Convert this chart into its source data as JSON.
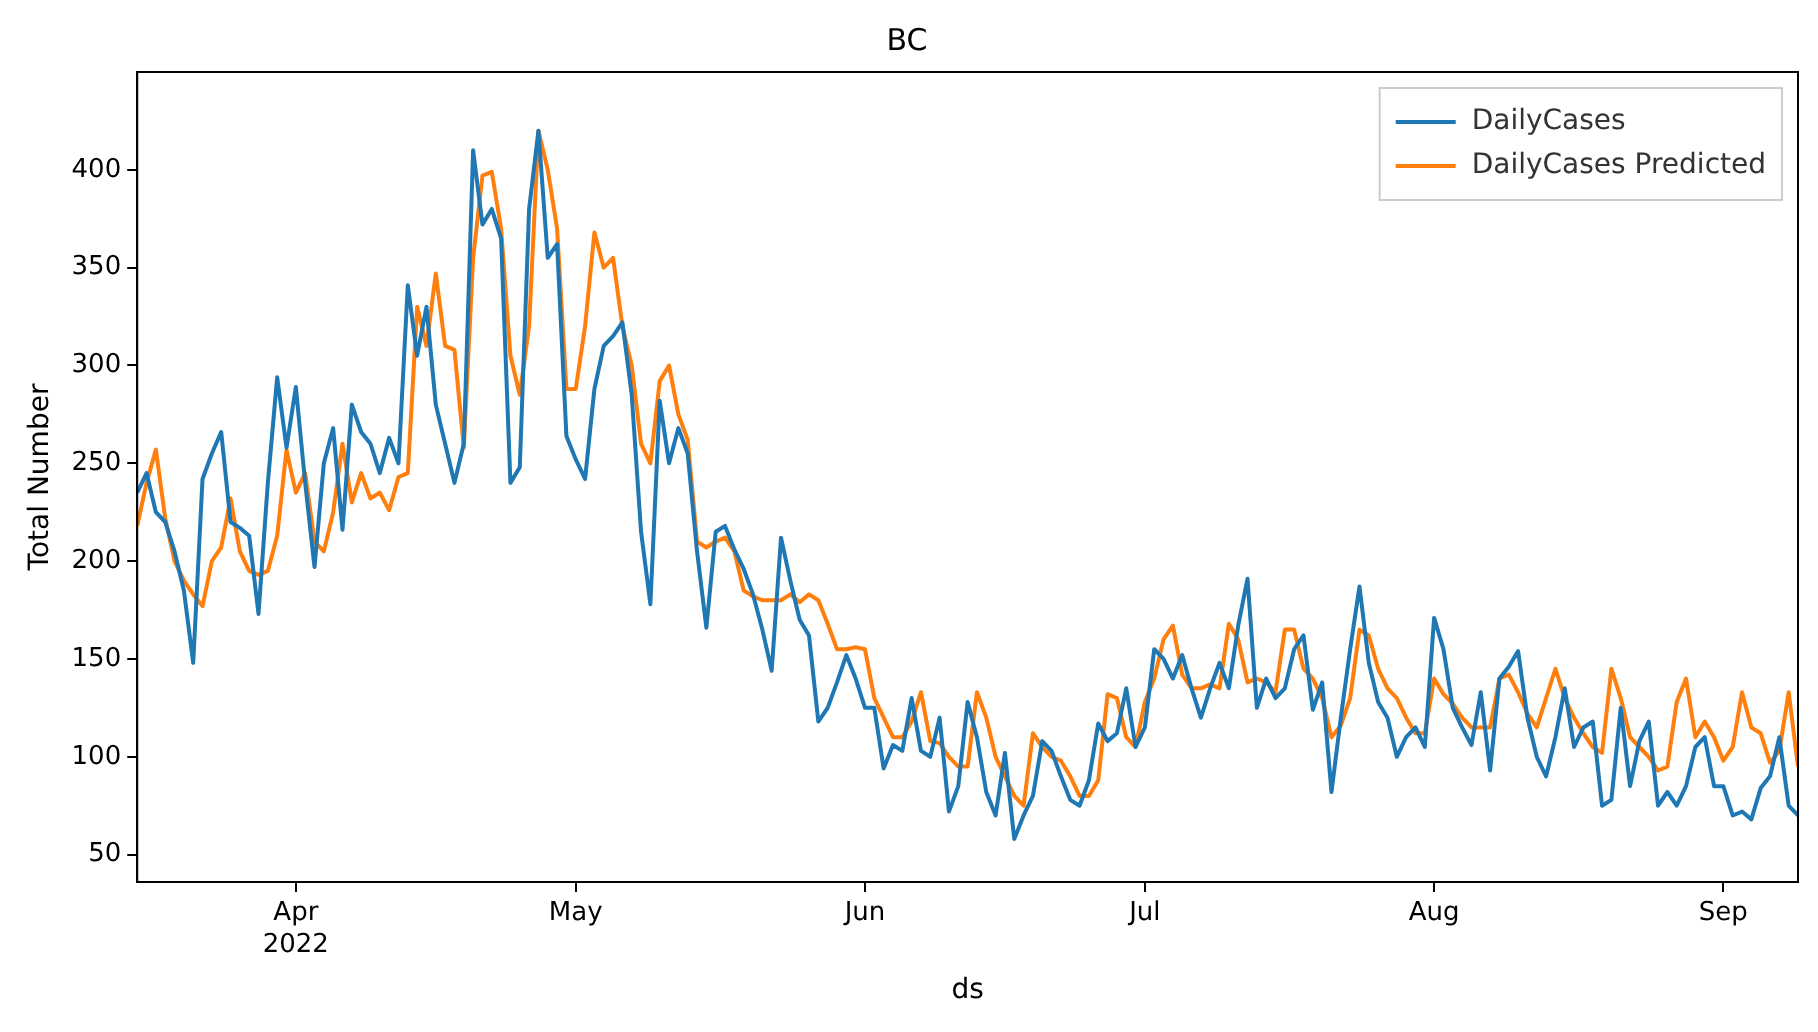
{
  "chart_data": {
    "type": "line",
    "title": "BC",
    "xlabel": "ds",
    "ylabel": "Total Number",
    "x": [
      "2022-03-15",
      "2022-03-16",
      "2022-03-17",
      "2022-03-18",
      "2022-03-19",
      "2022-03-20",
      "2022-03-21",
      "2022-03-22",
      "2022-03-23",
      "2022-03-24",
      "2022-03-25",
      "2022-03-26",
      "2022-03-27",
      "2022-03-28",
      "2022-03-29",
      "2022-03-30",
      "2022-03-31",
      "2022-04-01",
      "2022-04-02",
      "2022-04-03",
      "2022-04-04",
      "2022-04-05",
      "2022-04-06",
      "2022-04-07",
      "2022-04-08",
      "2022-04-09",
      "2022-04-10",
      "2022-04-11",
      "2022-04-12",
      "2022-04-13",
      "2022-04-14",
      "2022-04-15",
      "2022-04-16",
      "2022-04-17",
      "2022-04-18",
      "2022-04-19",
      "2022-04-20",
      "2022-04-21",
      "2022-04-22",
      "2022-04-23",
      "2022-04-24",
      "2022-04-25",
      "2022-04-26",
      "2022-04-27",
      "2022-04-28",
      "2022-04-29",
      "2022-04-30",
      "2022-05-01",
      "2022-05-02",
      "2022-05-03",
      "2022-05-04",
      "2022-05-05",
      "2022-05-06",
      "2022-05-07",
      "2022-05-08",
      "2022-05-09",
      "2022-05-10",
      "2022-05-11",
      "2022-05-12",
      "2022-05-13",
      "2022-05-14",
      "2022-05-15",
      "2022-05-16",
      "2022-05-17",
      "2022-05-18",
      "2022-05-19",
      "2022-05-20",
      "2022-05-21",
      "2022-05-22",
      "2022-05-23",
      "2022-05-24",
      "2022-05-25",
      "2022-05-26",
      "2022-05-27",
      "2022-05-28",
      "2022-05-29",
      "2022-05-30",
      "2022-05-31",
      "2022-06-01",
      "2022-06-02",
      "2022-06-03",
      "2022-06-04",
      "2022-06-05",
      "2022-06-06",
      "2022-06-07",
      "2022-06-08",
      "2022-06-09",
      "2022-06-10",
      "2022-06-11",
      "2022-06-12",
      "2022-06-13",
      "2022-06-14",
      "2022-06-15",
      "2022-06-16",
      "2022-06-17",
      "2022-06-18",
      "2022-06-19",
      "2022-06-20",
      "2022-06-21",
      "2022-06-22",
      "2022-06-23",
      "2022-06-24",
      "2022-06-25",
      "2022-06-26",
      "2022-06-27",
      "2022-06-28",
      "2022-06-29",
      "2022-06-30",
      "2022-07-01",
      "2022-07-02",
      "2022-07-03",
      "2022-07-04",
      "2022-07-05",
      "2022-07-06",
      "2022-07-07",
      "2022-07-08",
      "2022-07-09",
      "2022-07-10",
      "2022-07-11",
      "2022-07-12",
      "2022-07-13",
      "2022-07-14",
      "2022-07-15",
      "2022-07-16",
      "2022-07-17",
      "2022-07-18",
      "2022-07-19",
      "2022-07-20",
      "2022-07-21",
      "2022-07-22",
      "2022-07-23",
      "2022-07-24",
      "2022-07-25",
      "2022-07-26",
      "2022-07-27",
      "2022-07-28",
      "2022-07-29",
      "2022-07-30",
      "2022-07-31",
      "2022-08-01",
      "2022-08-02",
      "2022-08-03",
      "2022-08-04",
      "2022-08-05",
      "2022-08-06",
      "2022-08-07",
      "2022-08-08",
      "2022-08-09",
      "2022-08-10",
      "2022-08-11",
      "2022-08-12",
      "2022-08-13",
      "2022-08-14",
      "2022-08-15",
      "2022-08-16",
      "2022-08-17",
      "2022-08-18",
      "2022-08-19",
      "2022-08-20",
      "2022-08-21",
      "2022-08-22",
      "2022-08-23",
      "2022-08-24",
      "2022-08-25",
      "2022-08-26",
      "2022-08-27",
      "2022-08-28",
      "2022-08-29",
      "2022-08-30",
      "2022-08-31",
      "2022-09-01",
      "2022-09-02",
      "2022-09-03",
      "2022-09-04",
      "2022-09-05",
      "2022-09-06",
      "2022-09-07",
      "2022-09-08",
      "2022-09-09"
    ],
    "series": [
      {
        "name": "DailyCases",
        "color": "#1f77b4",
        "values": [
          235,
          245,
          225,
          220,
          205,
          185,
          148,
          242,
          255,
          266,
          220,
          217,
          213,
          173,
          240,
          294,
          258,
          289,
          240,
          197,
          250,
          268,
          216,
          280,
          266,
          260,
          245,
          263,
          250,
          341,
          305,
          330,
          280,
          260,
          240,
          260,
          410,
          372,
          380,
          365,
          240,
          248,
          380,
          420,
          355,
          362,
          264,
          252,
          242,
          288,
          310,
          315,
          322,
          285,
          215,
          178,
          282,
          250,
          268,
          255,
          205,
          166,
          215,
          218,
          206,
          196,
          183,
          165,
          144,
          212,
          190,
          170,
          162,
          118,
          125,
          138,
          152,
          140,
          125,
          125,
          94,
          106,
          103,
          130,
          103,
          100,
          120,
          72,
          85,
          128,
          110,
          82,
          70,
          102,
          58,
          70,
          80,
          108,
          103,
          90,
          78,
          75,
          88,
          117,
          108,
          112,
          135,
          105,
          115,
          155,
          150,
          140,
          152,
          135,
          120,
          135,
          148,
          135,
          167,
          191,
          125,
          140,
          130,
          135,
          155,
          162,
          124,
          138,
          82,
          120,
          155,
          187,
          148,
          128,
          120,
          100,
          110,
          115,
          105,
          171,
          155,
          125,
          115,
          106,
          133,
          93,
          140,
          146,
          154,
          120,
          100,
          90,
          110,
          135,
          105,
          115,
          118,
          75,
          78,
          125,
          85,
          108,
          118,
          75,
          82,
          75,
          85,
          105,
          110,
          85,
          85,
          70,
          72,
          68,
          84,
          90,
          110,
          75,
          70
        ]
      },
      {
        "name": "DailyCases Predicted",
        "color": "#ff7f0e",
        "values": [
          218,
          240,
          257,
          222,
          200,
          190,
          183,
          177,
          200,
          207,
          232,
          205,
          195,
          193,
          195,
          213,
          257,
          235,
          245,
          210,
          205,
          225,
          260,
          230,
          245,
          232,
          235,
          226,
          243,
          245,
          330,
          310,
          347,
          310,
          308,
          258,
          355,
          397,
          399,
          370,
          305,
          285,
          320,
          420,
          400,
          370,
          288,
          288,
          320,
          368,
          350,
          355,
          320,
          300,
          260,
          250,
          292,
          300,
          275,
          262,
          210,
          207,
          210,
          212,
          205,
          185,
          182,
          180,
          180,
          180,
          183,
          179,
          183,
          180,
          168,
          155,
          155,
          156,
          155,
          130,
          120,
          110,
          110,
          118,
          133,
          108,
          107,
          100,
          95,
          95,
          133,
          120,
          100,
          90,
          80,
          75,
          112,
          105,
          100,
          98,
          90,
          80,
          80,
          88,
          132,
          130,
          110,
          105,
          128,
          140,
          160,
          167,
          142,
          135,
          135,
          137,
          135,
          168,
          160,
          138,
          140,
          138,
          133,
          165,
          165,
          145,
          140,
          130,
          110,
          116,
          130,
          165,
          162,
          145,
          135,
          130,
          120,
          112,
          112,
          140,
          132,
          127,
          120,
          115,
          115,
          115,
          140,
          142,
          133,
          122,
          115,
          130,
          145,
          130,
          120,
          112,
          105,
          102,
          145,
          130,
          110,
          105,
          100,
          93,
          95,
          128,
          140,
          110,
          118,
          110,
          98,
          105,
          133,
          115,
          112,
          97,
          103,
          133,
          95
        ]
      }
    ],
    "xlim": [
      "2022-03-15",
      "2022-09-09"
    ],
    "xticks": [
      {
        "value": "2022-04-01",
        "label": "Apr\n2022"
      },
      {
        "value": "2022-05-01",
        "label": "May"
      },
      {
        "value": "2022-06-01",
        "label": "Jun"
      },
      {
        "value": "2022-07-01",
        "label": "Jul"
      },
      {
        "value": "2022-08-01",
        "label": "Aug"
      },
      {
        "value": "2022-09-01",
        "label": "Sep"
      }
    ],
    "ylim": [
      36,
      450
    ],
    "yticks": [
      50,
      100,
      150,
      200,
      250,
      300,
      350,
      400
    ],
    "legend": "top right",
    "grid": false,
    "marker": "none",
    "line_style": "solid"
  }
}
